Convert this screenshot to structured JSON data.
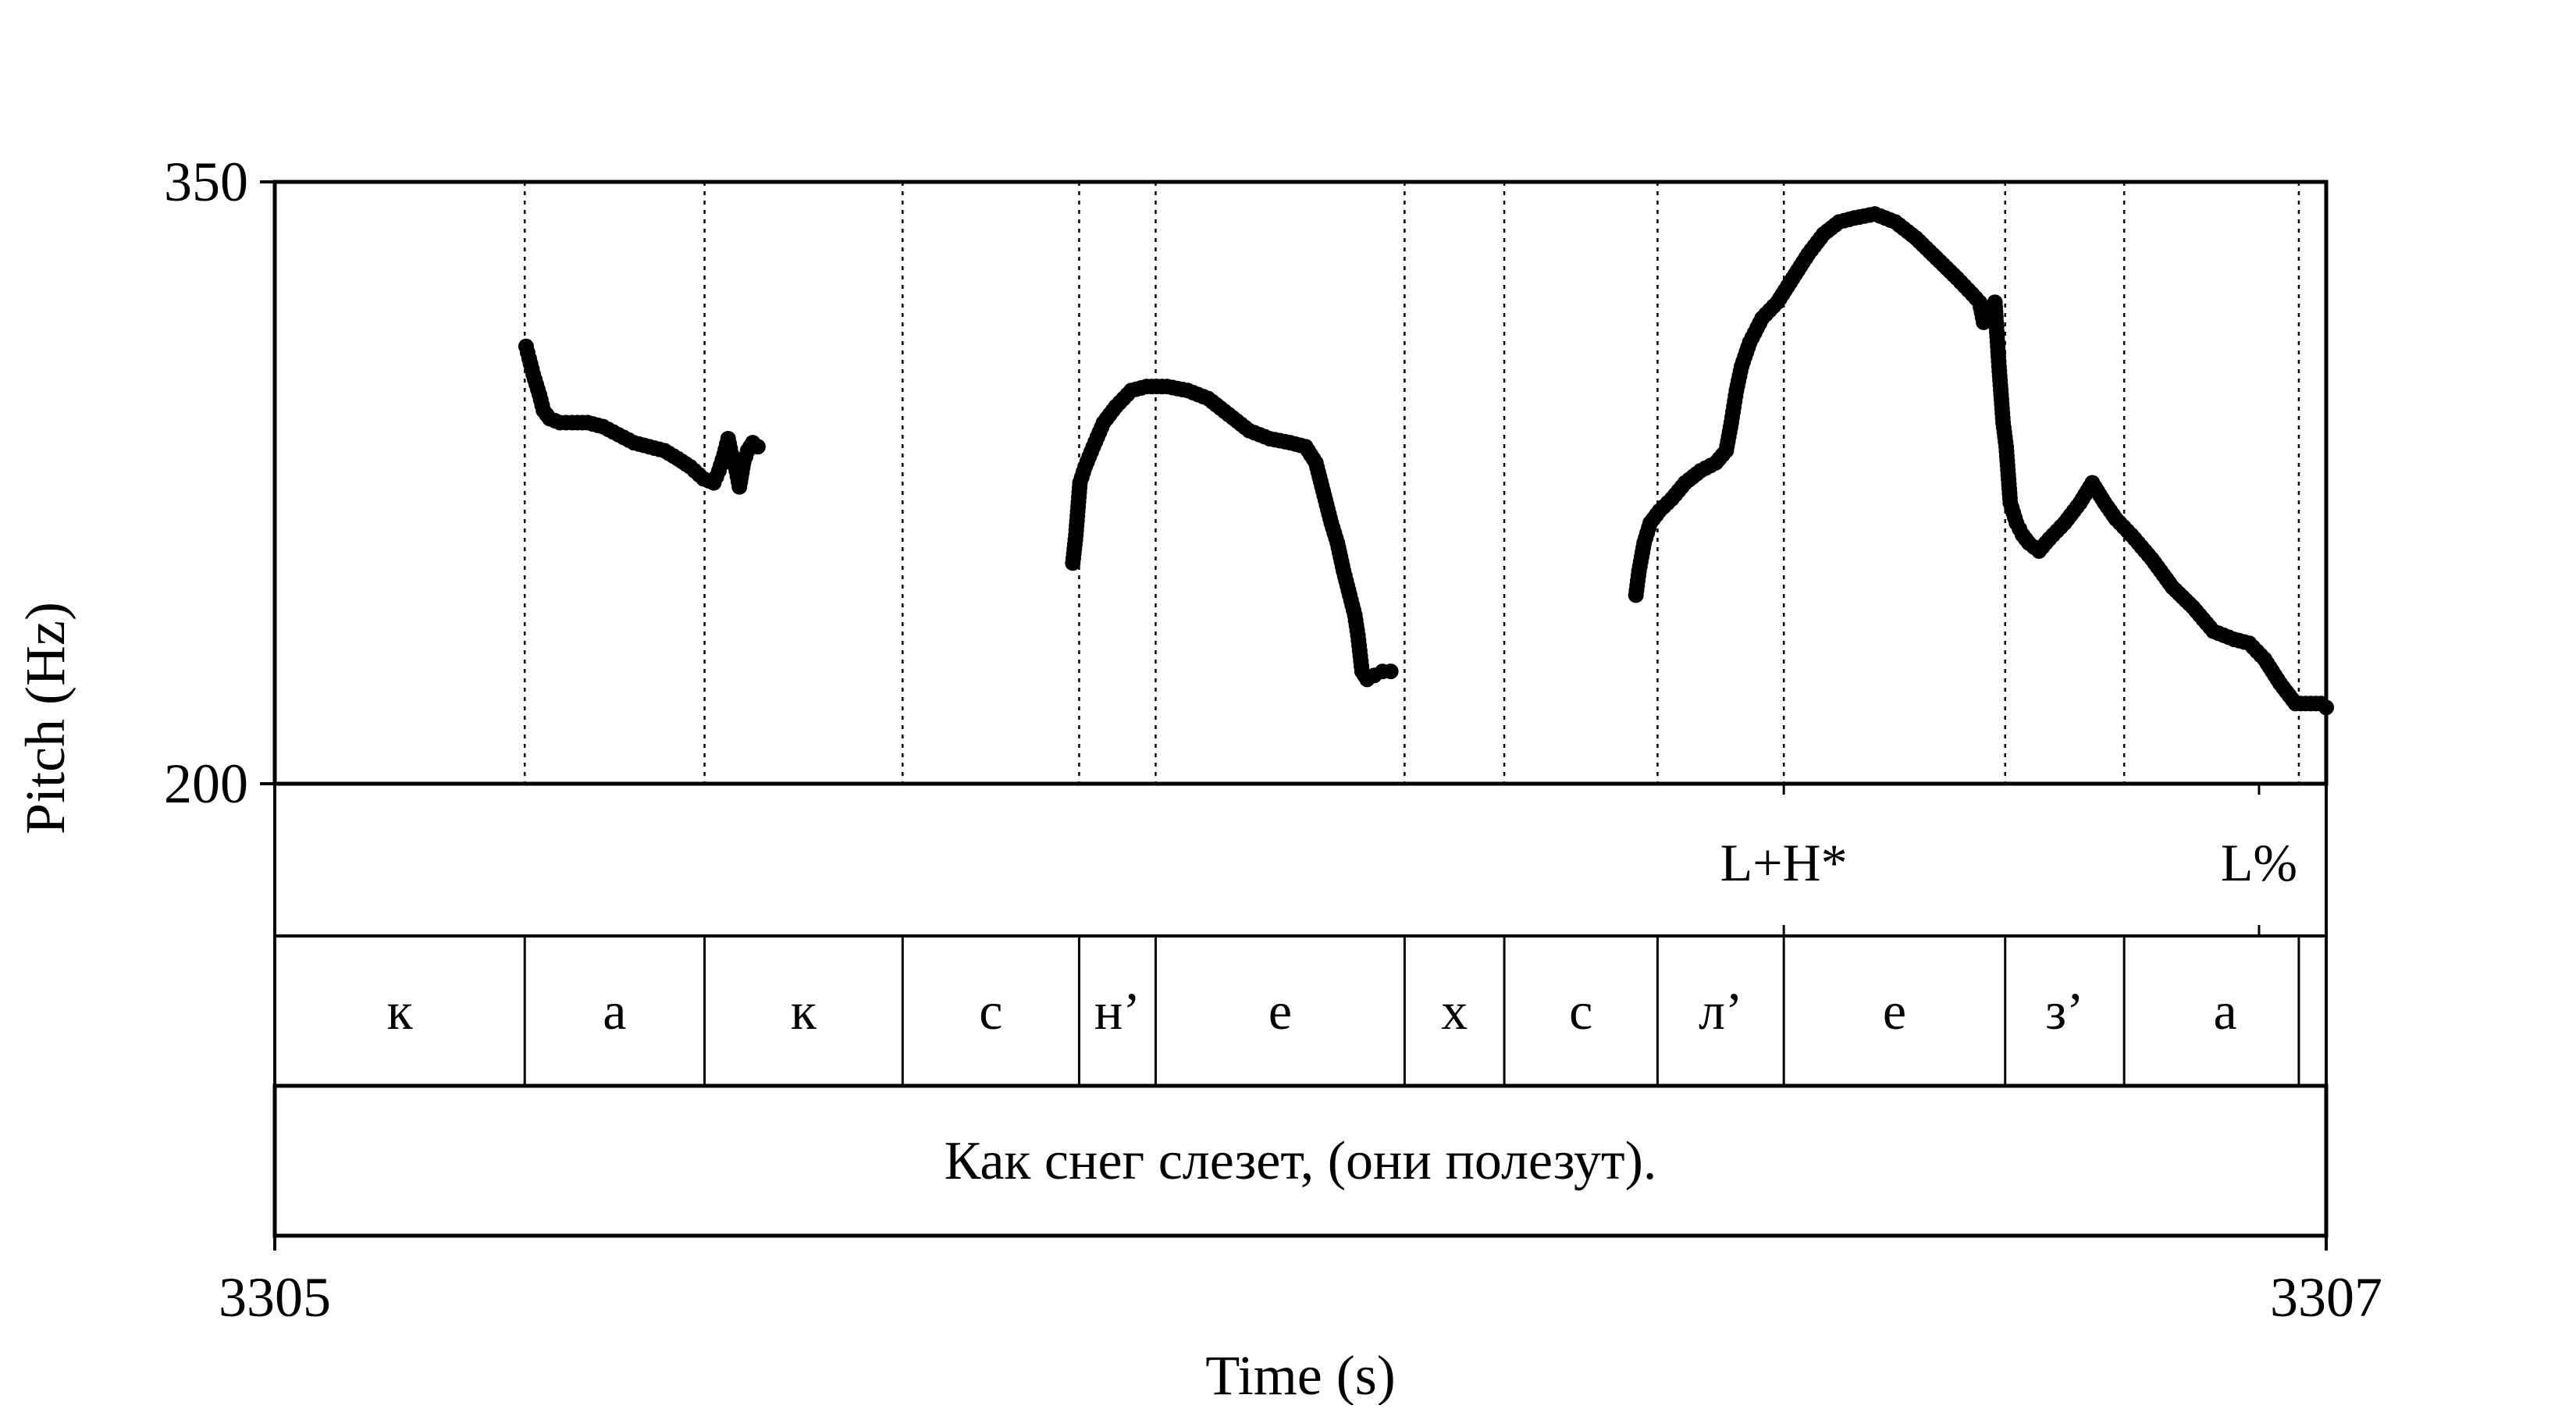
{
  "chart_data": {
    "type": "scatter",
    "xlabel": "Time (s)",
    "ylabel": "Pitch (Hz)",
    "xlim": [
      3305,
      3307
    ],
    "ylim": [
      200,
      350
    ],
    "x_ticks": [
      "3305",
      "3307"
    ],
    "y_ticks": [
      "350",
      "200"
    ],
    "grid": false,
    "boundaries": [
      3305.2437,
      3305.419,
      3305.6121,
      3305.7842,
      3305.8588,
      3306.1015,
      3306.1987,
      3306.3481,
      3306.4712,
      3306.687,
      3306.803,
      3306.9733
    ],
    "segments": [
      {
        "label": "к",
        "start": 3305.0,
        "end": 3305.2437
      },
      {
        "label": "а",
        "start": 3305.2437,
        "end": 3305.419
      },
      {
        "label": "к",
        "start": 3305.419,
        "end": 3305.6121
      },
      {
        "label": "с",
        "start": 3305.6121,
        "end": 3305.7842
      },
      {
        "label": "н’",
        "start": 3305.7842,
        "end": 3305.8588
      },
      {
        "label": "е",
        "start": 3305.8588,
        "end": 3306.1015
      },
      {
        "label": "х",
        "start": 3306.1015,
        "end": 3306.1987
      },
      {
        "label": "с",
        "start": 3306.1987,
        "end": 3306.3481
      },
      {
        "label": "л’",
        "start": 3306.3481,
        "end": 3306.4712
      },
      {
        "label": "е",
        "start": 3306.4712,
        "end": 3306.687
      },
      {
        "label": "з’",
        "start": 3306.687,
        "end": 3306.803
      },
      {
        "label": "а",
        "start": 3306.803,
        "end": 3307.0
      }
    ],
    "tones": [
      {
        "label": "L+H*",
        "time": 3306.4712
      },
      {
        "label": "L%",
        "time": 3306.9345
      }
    ],
    "sentence": "Как снег слезет, (они полезут).",
    "series": [
      {
        "points": [
          [
            3305.245,
            309
          ],
          [
            3305.248,
            306
          ],
          [
            3305.252,
            302
          ],
          [
            3305.258,
            297
          ],
          [
            3305.262,
            293
          ],
          [
            3305.268,
            291
          ],
          [
            3305.278,
            290
          ],
          [
            3305.29,
            290
          ],
          [
            3305.305,
            290
          ],
          [
            3305.32,
            289
          ],
          [
            3305.335,
            287
          ],
          [
            3305.35,
            285
          ],
          [
            3305.365,
            284
          ],
          [
            3305.38,
            283
          ],
          [
            3305.393,
            281
          ],
          [
            3305.405,
            279
          ],
          [
            3305.418,
            276
          ],
          [
            3305.428,
            275
          ],
          [
            3305.433,
            278
          ],
          [
            3305.438,
            282
          ],
          [
            3305.442,
            286
          ],
          [
            3305.446,
            281
          ],
          [
            3305.45,
            278
          ],
          [
            3305.453,
            274
          ],
          [
            3305.457,
            280
          ],
          [
            3305.461,
            283
          ],
          [
            3305.466,
            285
          ],
          [
            3305.471,
            284
          ]
        ]
      },
      {
        "points": [
          [
            3305.778,
            255
          ],
          [
            3305.781,
            262
          ],
          [
            3305.785,
            275
          ],
          [
            3305.79,
            279
          ],
          [
            3305.798,
            284
          ],
          [
            3305.808,
            290
          ],
          [
            3305.82,
            294
          ],
          [
            3305.835,
            298
          ],
          [
            3305.85,
            299
          ],
          [
            3305.87,
            299
          ],
          [
            3305.89,
            298
          ],
          [
            3305.91,
            296
          ],
          [
            3305.93,
            292
          ],
          [
            3305.95,
            288
          ],
          [
            3305.97,
            286
          ],
          [
            3305.99,
            285
          ],
          [
            3306.005,
            284
          ],
          [
            3306.015,
            280
          ],
          [
            3306.022,
            273
          ],
          [
            3306.03,
            265
          ],
          [
            3306.036,
            260
          ],
          [
            3306.042,
            253
          ],
          [
            3306.048,
            247
          ],
          [
            3306.053,
            242
          ],
          [
            3306.056,
            237
          ],
          [
            3306.06,
            228
          ],
          [
            3306.065,
            226
          ],
          [
            3306.072,
            227
          ],
          [
            3306.08,
            228
          ],
          [
            3306.088,
            228
          ]
        ]
      },
      {
        "points": [
          [
            3306.327,
            247
          ],
          [
            3306.33,
            253
          ],
          [
            3306.335,
            260
          ],
          [
            3306.341,
            265
          ],
          [
            3306.35,
            268
          ],
          [
            3306.362,
            271
          ],
          [
            3306.375,
            275
          ],
          [
            3306.39,
            278
          ],
          [
            3306.405,
            280
          ],
          [
            3306.415,
            283
          ],
          [
            3306.42,
            290
          ],
          [
            3306.425,
            298
          ],
          [
            3306.43,
            304
          ],
          [
            3306.438,
            310
          ],
          [
            3306.45,
            316
          ],
          [
            3306.465,
            320
          ],
          [
            3306.48,
            326
          ],
          [
            3306.495,
            332
          ],
          [
            3306.51,
            337
          ],
          [
            3306.525,
            340
          ],
          [
            3306.54,
            341
          ],
          [
            3306.56,
            342
          ],
          [
            3306.58,
            340
          ],
          [
            3306.6,
            336
          ],
          [
            3306.62,
            331
          ],
          [
            3306.64,
            326
          ],
          [
            3306.655,
            322
          ],
          [
            3306.662,
            320
          ],
          [
            3306.666,
            315
          ],
          [
            3306.672,
            318
          ],
          [
            3306.677,
            320
          ],
          [
            3306.681,
            304
          ],
          [
            3306.685,
            290
          ],
          [
            3306.688,
            284
          ],
          [
            3306.692,
            270
          ],
          [
            3306.698,
            265
          ],
          [
            3306.704,
            262
          ],
          [
            3306.71,
            260
          ],
          [
            3306.72,
            258
          ],
          [
            3306.73,
            261
          ],
          [
            3306.745,
            265
          ],
          [
            3306.76,
            270
          ],
          [
            3306.772,
            275
          ],
          [
            3306.784,
            270
          ],
          [
            3306.795,
            266
          ],
          [
            3306.81,
            262
          ],
          [
            3306.83,
            256
          ],
          [
            3306.85,
            249
          ],
          [
            3306.87,
            244
          ],
          [
            3306.89,
            238
          ],
          [
            3306.91,
            236
          ],
          [
            3306.925,
            235
          ],
          [
            3306.94,
            231
          ],
          [
            3306.955,
            225
          ],
          [
            3306.97,
            220
          ],
          [
            3306.985,
            220
          ],
          [
            3306.995,
            220
          ],
          [
            3307.0,
            219
          ]
        ]
      }
    ]
  }
}
